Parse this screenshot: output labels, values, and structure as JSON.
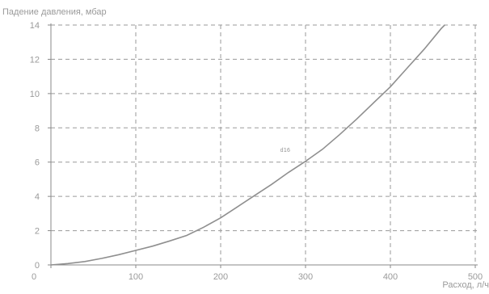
{
  "chart_data": {
    "type": "line",
    "ylabel": "Падение давления, мбар",
    "xlabel": "Расход, л/ч",
    "xlim": [
      0,
      500
    ],
    "ylim": [
      0,
      14
    ],
    "xticks": [
      0,
      100,
      200,
      300,
      400,
      500
    ],
    "yticks": [
      0,
      2,
      4,
      6,
      8,
      10,
      12,
      14
    ],
    "grid": true,
    "series": [
      {
        "name": "d16",
        "color": "#8f8f8f",
        "points": [
          [
            0,
            0
          ],
          [
            20,
            0.08
          ],
          [
            40,
            0.2
          ],
          [
            60,
            0.38
          ],
          [
            80,
            0.6
          ],
          [
            100,
            0.85
          ],
          [
            120,
            1.1
          ],
          [
            140,
            1.4
          ],
          [
            160,
            1.72
          ],
          [
            180,
            2.2
          ],
          [
            200,
            2.75
          ],
          [
            220,
            3.4
          ],
          [
            240,
            4.05
          ],
          [
            260,
            4.7
          ],
          [
            280,
            5.4
          ],
          [
            300,
            6.05
          ],
          [
            320,
            6.75
          ],
          [
            340,
            7.6
          ],
          [
            360,
            8.5
          ],
          [
            380,
            9.45
          ],
          [
            400,
            10.4
          ],
          [
            420,
            11.5
          ],
          [
            440,
            12.6
          ],
          [
            460,
            13.8
          ],
          [
            464,
            14
          ]
        ]
      }
    ],
    "annotations": [
      {
        "text": "d16",
        "x": 282,
        "y": 6.6
      }
    ]
  }
}
